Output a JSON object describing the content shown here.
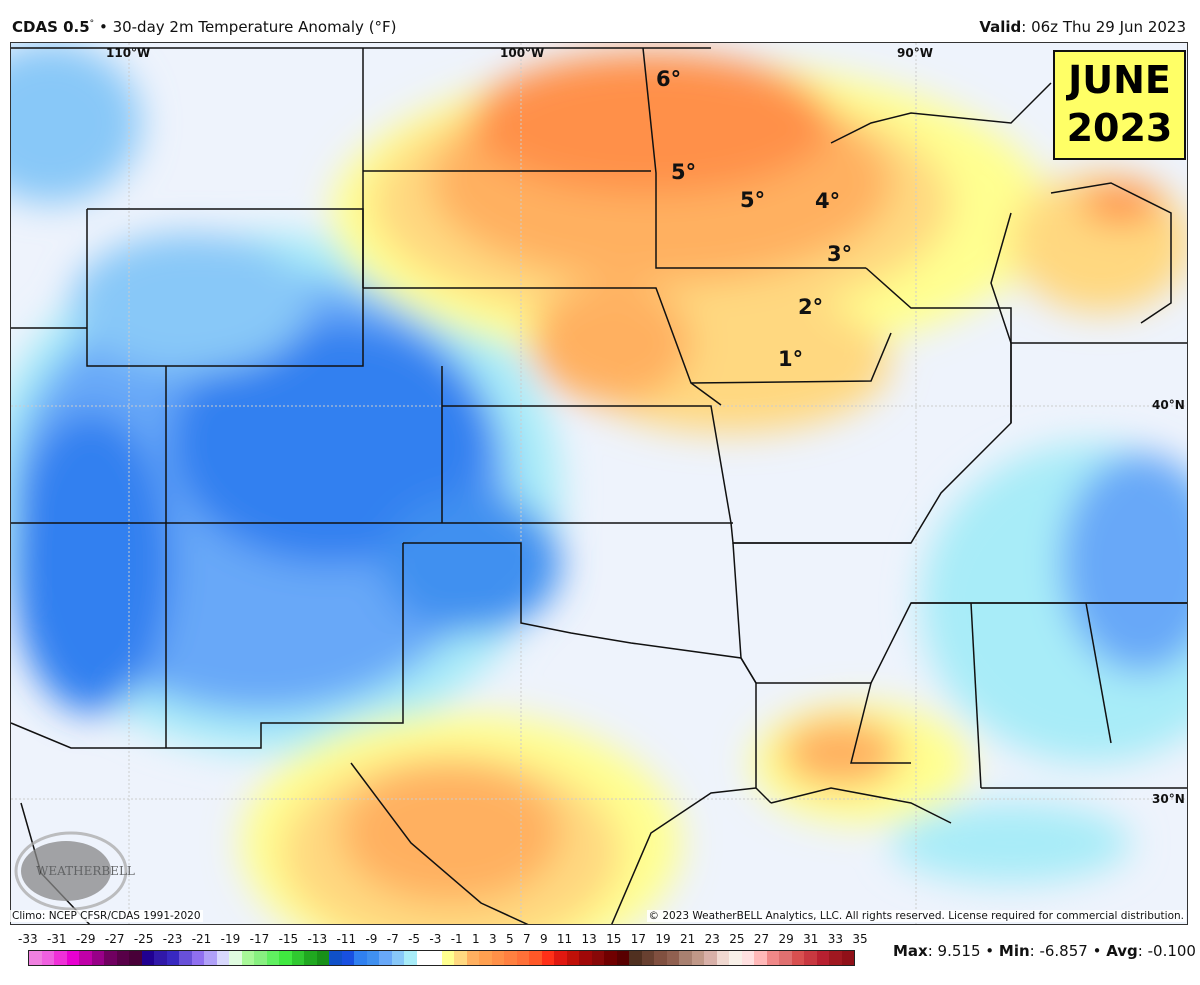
{
  "header": {
    "model": "CDAS 0.5",
    "model_deg": "°",
    "title": "30-day 2m Temperature Anomaly (°F)",
    "valid_label": "Valid",
    "valid_value": ": 06z Thu 29 Jun 2023"
  },
  "map": {
    "lon_labels": [
      "110°W",
      "100°W",
      "90°W"
    ],
    "lat_labels": [
      "40°N",
      "30°N"
    ],
    "annotations": [
      "6°",
      "5°",
      "5°",
      "4°",
      "3°",
      "2°",
      "1°"
    ],
    "badge_line1": "JUNE",
    "badge_line2": "2023",
    "climo_note": "Climo: NCEP CFSR/CDAS 1991-2020",
    "copyright": "© 2023 WeatherBELL Analytics, LLC. All rights reserved. License required for commercial distribution.",
    "logo_text": "WeatherBELL"
  },
  "legend": {
    "ticks": [
      "-33",
      "-31",
      "-29",
      "-27",
      "-25",
      "-23",
      "-21",
      "-19",
      "-17",
      "-15",
      "-13",
      "-11",
      "-9",
      "-7",
      "-5",
      "-3",
      "-1",
      "1",
      "3",
      "5",
      "7",
      "9",
      "11",
      "13",
      "15",
      "17",
      "19",
      "21",
      "23",
      "25",
      "27",
      "29",
      "31",
      "33",
      "35"
    ],
    "colors": [
      "#f080e0",
      "#f060e0",
      "#f030d8",
      "#e800d0",
      "#c000a8",
      "#980088",
      "#700060",
      "#580048",
      "#480038",
      "#200090",
      "#3018a8",
      "#3828c0",
      "#6850d8",
      "#9070f0",
      "#b0a0f8",
      "#d8d8fc",
      "#e0fce0",
      "#a8f898",
      "#88f080",
      "#60f060",
      "#40e840",
      "#30c830",
      "#20a820",
      "#189018",
      "#1050c8",
      "#1850e0",
      "#3080f0",
      "#4090f0",
      "#68a8f8",
      "#88c8f8",
      "#a8ecf8",
      "#ffffff",
      "#ffffff",
      "#ffff90",
      "#ffd880",
      "#ffb060",
      "#ffa050",
      "#ff9048",
      "#ff8040",
      "#ff7038",
      "#ff5828",
      "#ff3018",
      "#e01810",
      "#c01008",
      "#a00808",
      "#880808",
      "#700000",
      "#580000",
      "#503020",
      "#684030",
      "#805040",
      "#906050",
      "#a88070",
      "#c09888",
      "#d8b0a8",
      "#f0d8d0",
      "#f8f0e8",
      "#ffe0e0",
      "#ffb8b8",
      "#f08888",
      "#e07070",
      "#d85050",
      "#c83840",
      "#b82030",
      "#a01820",
      "#901018"
    ]
  },
  "stats": {
    "max_label": "Max",
    "max_value": ": 9.515 • ",
    "min_label": "Min",
    "min_value": ": -6.857 • ",
    "avg_label": "Avg",
    "avg_value": ": -0.100"
  }
}
